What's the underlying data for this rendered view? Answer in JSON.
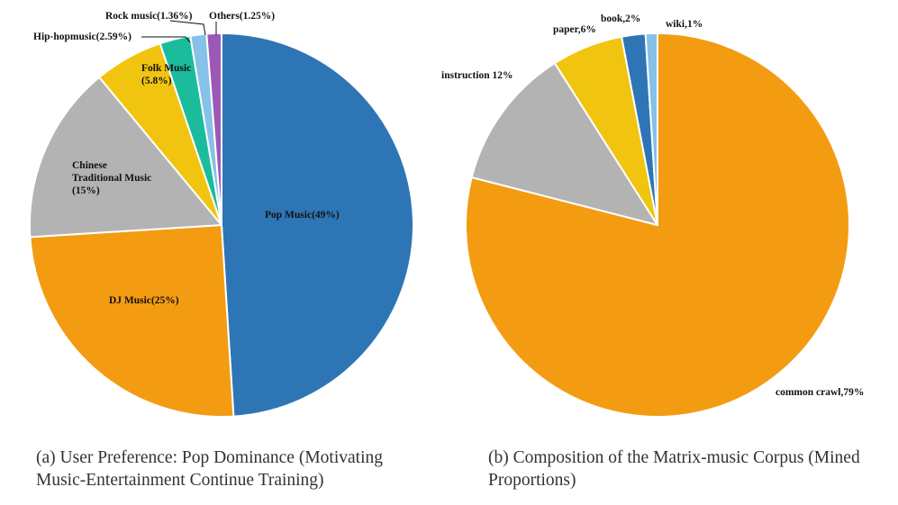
{
  "chart_data": [
    {
      "type": "pie",
      "title": "(a) User Preference: Pop Dominance (Motivating Music-Entertainment Continue Training)",
      "slices": [
        {
          "label": "Pop Music(49%)",
          "name": "Pop Music",
          "value": 49,
          "color": "#2e75b6"
        },
        {
          "label": "DJ Music(25%)",
          "name": "DJ Music",
          "value": 25,
          "color": "#f39c12"
        },
        {
          "label": [
            "Chinese",
            "Traditional Music",
            "(15%)"
          ],
          "name": "Chinese Traditional Music",
          "value": 15,
          "color": "#b3b3b3"
        },
        {
          "label": [
            "Folk Music",
            "(5.8%)"
          ],
          "name": "Folk Music",
          "value": 5.8,
          "color": "#f1c40f"
        },
        {
          "label": "Hip-hopmusic(2.59%)",
          "name": "Hip-hopmusic",
          "value": 2.59,
          "color": "#1abc9c"
        },
        {
          "label": "Rock music(1.36%)",
          "name": "Rock music",
          "value": 1.36,
          "color": "#85c1e9"
        },
        {
          "label": "Others(1.25%)",
          "name": "Others",
          "value": 1.25,
          "color": "#9b59b6"
        }
      ]
    },
    {
      "type": "pie",
      "title": "(b) Composition of the Matrix-music Corpus (Mined Proportions)",
      "slices": [
        {
          "label": "common crawl,79%",
          "name": "common crawl",
          "value": 79,
          "color": "#f39c12"
        },
        {
          "label": "instruction 12%",
          "name": "instruction",
          "value": 12,
          "color": "#b3b3b3"
        },
        {
          "label": "paper,6%",
          "name": "paper",
          "value": 6,
          "color": "#f1c40f"
        },
        {
          "label": "book,2%",
          "name": "book",
          "value": 2,
          "color": "#2e75b6"
        },
        {
          "label": "wiki,1%",
          "name": "wiki",
          "value": 1,
          "color": "#85c1e9"
        }
      ]
    }
  ],
  "captions": {
    "a": "(a) User Preference: Pop Dominance (Motivating Music-Entertainment Continue Training)",
    "b": "(b) Composition of the Matrix-music Corpus (Mined Proportions)"
  }
}
